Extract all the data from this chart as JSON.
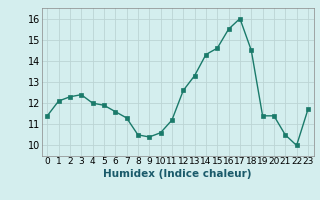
{
  "x": [
    0,
    1,
    2,
    3,
    4,
    5,
    6,
    7,
    8,
    9,
    10,
    11,
    12,
    13,
    14,
    15,
    16,
    17,
    18,
    19,
    20,
    21,
    22,
    23
  ],
  "y": [
    11.4,
    12.1,
    12.3,
    12.4,
    12.0,
    11.9,
    11.6,
    11.3,
    10.5,
    10.4,
    10.6,
    11.2,
    12.6,
    13.3,
    14.3,
    14.6,
    15.5,
    16.0,
    14.5,
    11.4,
    11.4,
    10.5,
    10.0,
    11.7
  ],
  "line_color": "#1a7a6a",
  "marker": "s",
  "marker_size": 2.5,
  "bg_color": "#d4eeee",
  "grid_color": "#bcd4d4",
  "xlabel": "Humidex (Indice chaleur)",
  "xlim": [
    -0.5,
    23.5
  ],
  "ylim": [
    9.5,
    16.5
  ],
  "yticks": [
    10,
    11,
    12,
    13,
    14,
    15,
    16
  ],
  "xticks": [
    0,
    1,
    2,
    3,
    4,
    5,
    6,
    7,
    8,
    9,
    10,
    11,
    12,
    13,
    14,
    15,
    16,
    17,
    18,
    19,
    20,
    21,
    22,
    23
  ],
  "tick_fontsize": 7,
  "xlabel_fontsize": 7.5,
  "xlabel_color": "#1a5a6a"
}
